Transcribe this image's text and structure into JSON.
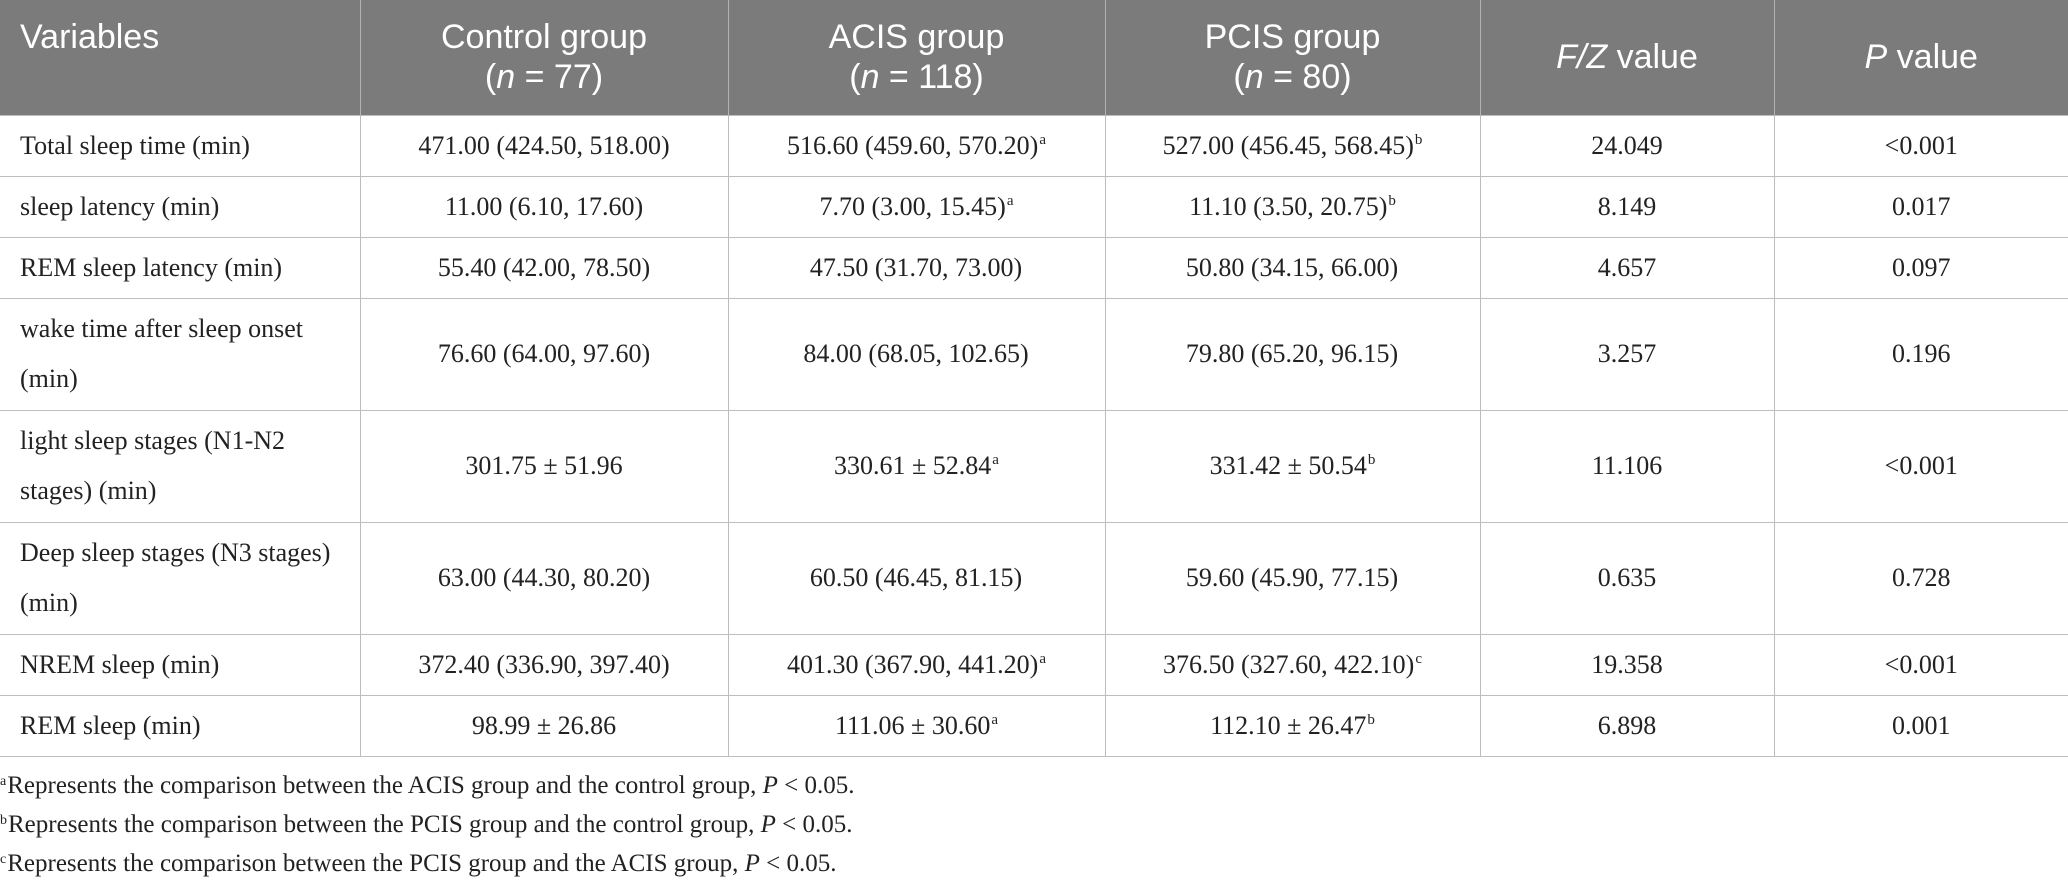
{
  "table": {
    "headers": [
      {
        "main": "Variables",
        "sub": ""
      },
      {
        "main": "Control group",
        "sub_pre": "(",
        "sub_italic": "n",
        "sub_post": " = 77)"
      },
      {
        "main": "ACIS group",
        "sub_pre": "(",
        "sub_italic": "n",
        "sub_post": " = 118)"
      },
      {
        "main": "PCIS group",
        "sub_pre": "(",
        "sub_italic": "n",
        "sub_post": " = 80)"
      },
      {
        "italic": "F/Z",
        "rest": " value"
      },
      {
        "italic": "P",
        "rest": " value"
      }
    ],
    "rows": [
      {
        "variable": "Total sleep time (min)",
        "control": "471.00 (424.50, 518.00)",
        "acis": "516.60 (459.60, 570.20)",
        "acis_sup": "a",
        "pcis": "527.00 (456.45, 568.45)",
        "pcis_sup": "b",
        "fz": "24.049",
        "p": "<0.001"
      },
      {
        "variable": "sleep latency (min)",
        "control": "11.00 (6.10, 17.60)",
        "acis": "7.70 (3.00, 15.45)",
        "acis_sup": "a",
        "pcis": "11.10 (3.50, 20.75)",
        "pcis_sup": "b",
        "fz": "8.149",
        "p": "0.017"
      },
      {
        "variable": "REM sleep latency (min)",
        "control": "55.40 (42.00, 78.50)",
        "acis": "47.50 (31.70, 73.00)",
        "acis_sup": "",
        "pcis": "50.80 (34.15, 66.00)",
        "pcis_sup": "",
        "fz": "4.657",
        "p": "0.097"
      },
      {
        "variable": "wake time after sleep onset (min)",
        "control": "76.60 (64.00, 97.60)",
        "acis": "84.00 (68.05, 102.65)",
        "acis_sup": "",
        "pcis": "79.80 (65.20, 96.15)",
        "pcis_sup": "",
        "fz": "3.257",
        "p": "0.196"
      },
      {
        "variable": "light sleep stages (N1-N2 stages) (min)",
        "control": "301.75 ± 51.96",
        "acis": "330.61 ± 52.84",
        "acis_sup": "a",
        "pcis": "331.42 ± 50.54",
        "pcis_sup": "b",
        "fz": "11.106",
        "p": "<0.001"
      },
      {
        "variable": "Deep sleep stages (N3 stages) (min)",
        "control": "63.00 (44.30, 80.20)",
        "acis": "60.50 (46.45, 81.15)",
        "acis_sup": "",
        "pcis": "59.60 (45.90, 77.15)",
        "pcis_sup": "",
        "fz": "0.635",
        "p": "0.728"
      },
      {
        "variable": "NREM sleep (min)",
        "control": "372.40 (336.90, 397.40)",
        "acis": "401.30 (367.90, 441.20)",
        "acis_sup": "a",
        "pcis": "376.50 (327.60, 422.10)",
        "pcis_sup": "c",
        "fz": "19.358",
        "p": "<0.001"
      },
      {
        "variable": "REM sleep (min)",
        "control": "98.99 ± 26.86",
        "acis": "111.06 ± 30.60",
        "acis_sup": "a",
        "pcis": "112.10 ± 26.47",
        "pcis_sup": "b",
        "fz": "6.898",
        "p": "0.001"
      }
    ]
  },
  "footnotes": [
    {
      "mark": "a",
      "text": "Represents the comparison between the ACIS group and the control group, ",
      "italic": "P",
      "tail": " < 0.05."
    },
    {
      "mark": "b",
      "text": "Represents the comparison between the PCIS group and the control group, ",
      "italic": "P",
      "tail": " < 0.05."
    },
    {
      "mark": "c",
      "text": "Represents the comparison between the PCIS group and the ACIS group, ",
      "italic": "P",
      "tail": " < 0.05."
    }
  ]
}
